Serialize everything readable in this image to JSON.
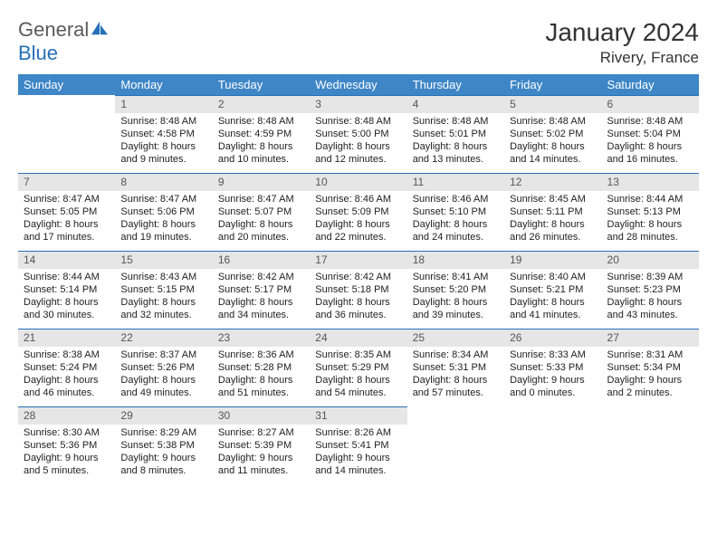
{
  "logo": {
    "text1": "General",
    "text2": "Blue"
  },
  "title": "January 2024",
  "location": "Rivery, France",
  "weekdays": [
    "Sunday",
    "Monday",
    "Tuesday",
    "Wednesday",
    "Thursday",
    "Friday",
    "Saturday"
  ],
  "colors": {
    "header_bg": "#3e86c6",
    "daynum_bg": "#e6e6e6",
    "border": "#2670b8"
  },
  "weeks": [
    [
      null,
      {
        "n": "1",
        "sr": "Sunrise: 8:48 AM",
        "ss": "Sunset: 4:58 PM",
        "d1": "Daylight: 8 hours",
        "d2": "and 9 minutes."
      },
      {
        "n": "2",
        "sr": "Sunrise: 8:48 AM",
        "ss": "Sunset: 4:59 PM",
        "d1": "Daylight: 8 hours",
        "d2": "and 10 minutes."
      },
      {
        "n": "3",
        "sr": "Sunrise: 8:48 AM",
        "ss": "Sunset: 5:00 PM",
        "d1": "Daylight: 8 hours",
        "d2": "and 12 minutes."
      },
      {
        "n": "4",
        "sr": "Sunrise: 8:48 AM",
        "ss": "Sunset: 5:01 PM",
        "d1": "Daylight: 8 hours",
        "d2": "and 13 minutes."
      },
      {
        "n": "5",
        "sr": "Sunrise: 8:48 AM",
        "ss": "Sunset: 5:02 PM",
        "d1": "Daylight: 8 hours",
        "d2": "and 14 minutes."
      },
      {
        "n": "6",
        "sr": "Sunrise: 8:48 AM",
        "ss": "Sunset: 5:04 PM",
        "d1": "Daylight: 8 hours",
        "d2": "and 16 minutes."
      }
    ],
    [
      {
        "n": "7",
        "sr": "Sunrise: 8:47 AM",
        "ss": "Sunset: 5:05 PM",
        "d1": "Daylight: 8 hours",
        "d2": "and 17 minutes."
      },
      {
        "n": "8",
        "sr": "Sunrise: 8:47 AM",
        "ss": "Sunset: 5:06 PM",
        "d1": "Daylight: 8 hours",
        "d2": "and 19 minutes."
      },
      {
        "n": "9",
        "sr": "Sunrise: 8:47 AM",
        "ss": "Sunset: 5:07 PM",
        "d1": "Daylight: 8 hours",
        "d2": "and 20 minutes."
      },
      {
        "n": "10",
        "sr": "Sunrise: 8:46 AM",
        "ss": "Sunset: 5:09 PM",
        "d1": "Daylight: 8 hours",
        "d2": "and 22 minutes."
      },
      {
        "n": "11",
        "sr": "Sunrise: 8:46 AM",
        "ss": "Sunset: 5:10 PM",
        "d1": "Daylight: 8 hours",
        "d2": "and 24 minutes."
      },
      {
        "n": "12",
        "sr": "Sunrise: 8:45 AM",
        "ss": "Sunset: 5:11 PM",
        "d1": "Daylight: 8 hours",
        "d2": "and 26 minutes."
      },
      {
        "n": "13",
        "sr": "Sunrise: 8:44 AM",
        "ss": "Sunset: 5:13 PM",
        "d1": "Daylight: 8 hours",
        "d2": "and 28 minutes."
      }
    ],
    [
      {
        "n": "14",
        "sr": "Sunrise: 8:44 AM",
        "ss": "Sunset: 5:14 PM",
        "d1": "Daylight: 8 hours",
        "d2": "and 30 minutes."
      },
      {
        "n": "15",
        "sr": "Sunrise: 8:43 AM",
        "ss": "Sunset: 5:15 PM",
        "d1": "Daylight: 8 hours",
        "d2": "and 32 minutes."
      },
      {
        "n": "16",
        "sr": "Sunrise: 8:42 AM",
        "ss": "Sunset: 5:17 PM",
        "d1": "Daylight: 8 hours",
        "d2": "and 34 minutes."
      },
      {
        "n": "17",
        "sr": "Sunrise: 8:42 AM",
        "ss": "Sunset: 5:18 PM",
        "d1": "Daylight: 8 hours",
        "d2": "and 36 minutes."
      },
      {
        "n": "18",
        "sr": "Sunrise: 8:41 AM",
        "ss": "Sunset: 5:20 PM",
        "d1": "Daylight: 8 hours",
        "d2": "and 39 minutes."
      },
      {
        "n": "19",
        "sr": "Sunrise: 8:40 AM",
        "ss": "Sunset: 5:21 PM",
        "d1": "Daylight: 8 hours",
        "d2": "and 41 minutes."
      },
      {
        "n": "20",
        "sr": "Sunrise: 8:39 AM",
        "ss": "Sunset: 5:23 PM",
        "d1": "Daylight: 8 hours",
        "d2": "and 43 minutes."
      }
    ],
    [
      {
        "n": "21",
        "sr": "Sunrise: 8:38 AM",
        "ss": "Sunset: 5:24 PM",
        "d1": "Daylight: 8 hours",
        "d2": "and 46 minutes."
      },
      {
        "n": "22",
        "sr": "Sunrise: 8:37 AM",
        "ss": "Sunset: 5:26 PM",
        "d1": "Daylight: 8 hours",
        "d2": "and 49 minutes."
      },
      {
        "n": "23",
        "sr": "Sunrise: 8:36 AM",
        "ss": "Sunset: 5:28 PM",
        "d1": "Daylight: 8 hours",
        "d2": "and 51 minutes."
      },
      {
        "n": "24",
        "sr": "Sunrise: 8:35 AM",
        "ss": "Sunset: 5:29 PM",
        "d1": "Daylight: 8 hours",
        "d2": "and 54 minutes."
      },
      {
        "n": "25",
        "sr": "Sunrise: 8:34 AM",
        "ss": "Sunset: 5:31 PM",
        "d1": "Daylight: 8 hours",
        "d2": "and 57 minutes."
      },
      {
        "n": "26",
        "sr": "Sunrise: 8:33 AM",
        "ss": "Sunset: 5:33 PM",
        "d1": "Daylight: 9 hours",
        "d2": "and 0 minutes."
      },
      {
        "n": "27",
        "sr": "Sunrise: 8:31 AM",
        "ss": "Sunset: 5:34 PM",
        "d1": "Daylight: 9 hours",
        "d2": "and 2 minutes."
      }
    ],
    [
      {
        "n": "28",
        "sr": "Sunrise: 8:30 AM",
        "ss": "Sunset: 5:36 PM",
        "d1": "Daylight: 9 hours",
        "d2": "and 5 minutes."
      },
      {
        "n": "29",
        "sr": "Sunrise: 8:29 AM",
        "ss": "Sunset: 5:38 PM",
        "d1": "Daylight: 9 hours",
        "d2": "and 8 minutes."
      },
      {
        "n": "30",
        "sr": "Sunrise: 8:27 AM",
        "ss": "Sunset: 5:39 PM",
        "d1": "Daylight: 9 hours",
        "d2": "and 11 minutes."
      },
      {
        "n": "31",
        "sr": "Sunrise: 8:26 AM",
        "ss": "Sunset: 5:41 PM",
        "d1": "Daylight: 9 hours",
        "d2": "and 14 minutes."
      },
      null,
      null,
      null
    ]
  ]
}
